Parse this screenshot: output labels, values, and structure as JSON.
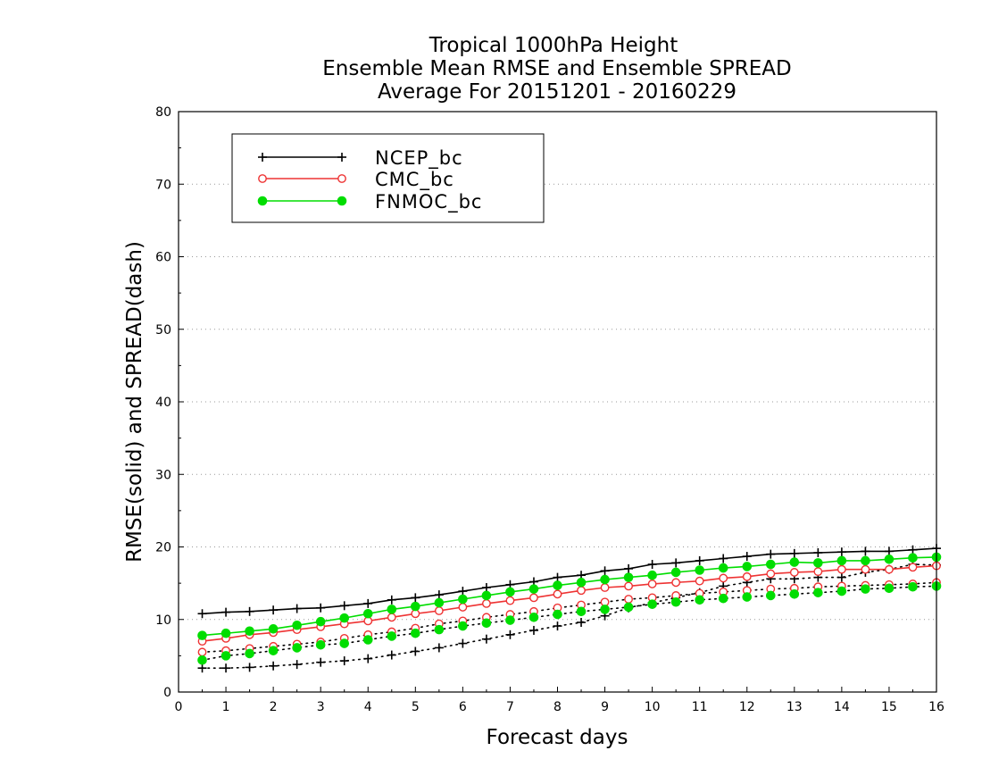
{
  "chart_data": {
    "type": "line",
    "title": [
      "Tropical 1000hPa Height",
      "Ensemble Mean RMSE and Ensemble SPREAD",
      "Average For 20151201 - 20160229"
    ],
    "xlabel": "Forecast days",
    "ylabel": "RMSE(solid) and SPREAD(dash)",
    "xlim": [
      0,
      16
    ],
    "ylim": [
      0,
      80
    ],
    "xticks": [
      0,
      1,
      2,
      3,
      4,
      5,
      6,
      7,
      8,
      9,
      10,
      11,
      12,
      13,
      14,
      15,
      16
    ],
    "yticks": [
      0,
      10,
      20,
      30,
      40,
      50,
      60,
      70,
      80
    ],
    "grid": "horizontal dotted",
    "legend_position": "top-left",
    "x": [
      0.5,
      1,
      1.5,
      2,
      2.5,
      3,
      3.5,
      4,
      4.5,
      5,
      5.5,
      6,
      6.5,
      7,
      7.5,
      8,
      8.5,
      9,
      9.5,
      10,
      10.5,
      11,
      11.5,
      12,
      12.5,
      13,
      13.5,
      14,
      14.5,
      15,
      15.5,
      16
    ],
    "series": [
      {
        "name": "NCEP_bc",
        "color": "#000000",
        "marker": "plus",
        "rmse": [
          10.8,
          11.0,
          11.1,
          11.3,
          11.5,
          11.6,
          11.9,
          12.2,
          12.7,
          13.0,
          13.4,
          13.9,
          14.4,
          14.8,
          15.2,
          15.8,
          16.1,
          16.7,
          17.0,
          17.6,
          17.8,
          18.1,
          18.4,
          18.7,
          19.0,
          19.1,
          19.2,
          19.3,
          19.4,
          19.4,
          19.6,
          19.8
        ],
        "spread": [
          3.3,
          3.3,
          3.4,
          3.6,
          3.8,
          4.1,
          4.3,
          4.6,
          5.1,
          5.6,
          6.1,
          6.7,
          7.3,
          7.9,
          8.5,
          9.1,
          9.6,
          10.5,
          11.6,
          12.3,
          13.0,
          13.7,
          14.6,
          15.1,
          15.6,
          15.6,
          15.8,
          15.8,
          16.5,
          16.9,
          17.6,
          17.5
        ]
      },
      {
        "name": "CMC_bc",
        "color": "#ee3333",
        "marker": "open-circle",
        "rmse": [
          7.0,
          7.4,
          7.9,
          8.2,
          8.6,
          9.0,
          9.4,
          9.8,
          10.3,
          10.8,
          11.2,
          11.7,
          12.2,
          12.6,
          13.0,
          13.5,
          14.0,
          14.4,
          14.6,
          14.9,
          15.1,
          15.3,
          15.7,
          15.9,
          16.3,
          16.5,
          16.6,
          16.9,
          16.9,
          16.9,
          17.2,
          17.4
        ],
        "spread": [
          5.5,
          5.7,
          6.0,
          6.3,
          6.6,
          6.9,
          7.4,
          7.9,
          8.3,
          8.8,
          9.4,
          9.8,
          10.3,
          10.7,
          11.1,
          11.6,
          12.0,
          12.4,
          12.8,
          13.0,
          13.3,
          13.6,
          13.8,
          14.0,
          14.2,
          14.3,
          14.5,
          14.6,
          14.7,
          14.8,
          14.9,
          15.1
        ]
      },
      {
        "name": "FNMOC_bc",
        "color": "#00dd00",
        "marker": "filled-circle",
        "rmse": [
          7.8,
          8.1,
          8.4,
          8.7,
          9.2,
          9.7,
          10.2,
          10.8,
          11.4,
          11.8,
          12.3,
          12.8,
          13.3,
          13.8,
          14.2,
          14.7,
          15.1,
          15.5,
          15.8,
          16.1,
          16.5,
          16.8,
          17.1,
          17.3,
          17.6,
          17.9,
          17.8,
          18.1,
          18.1,
          18.3,
          18.5,
          18.6
        ],
        "spread": [
          4.4,
          5.0,
          5.3,
          5.7,
          6.1,
          6.5,
          6.7,
          7.2,
          7.7,
          8.1,
          8.6,
          9.1,
          9.5,
          9.9,
          10.3,
          10.7,
          11.1,
          11.4,
          11.7,
          12.1,
          12.4,
          12.7,
          12.9,
          13.1,
          13.3,
          13.5,
          13.7,
          13.9,
          14.2,
          14.3,
          14.5,
          14.6
        ]
      }
    ]
  }
}
